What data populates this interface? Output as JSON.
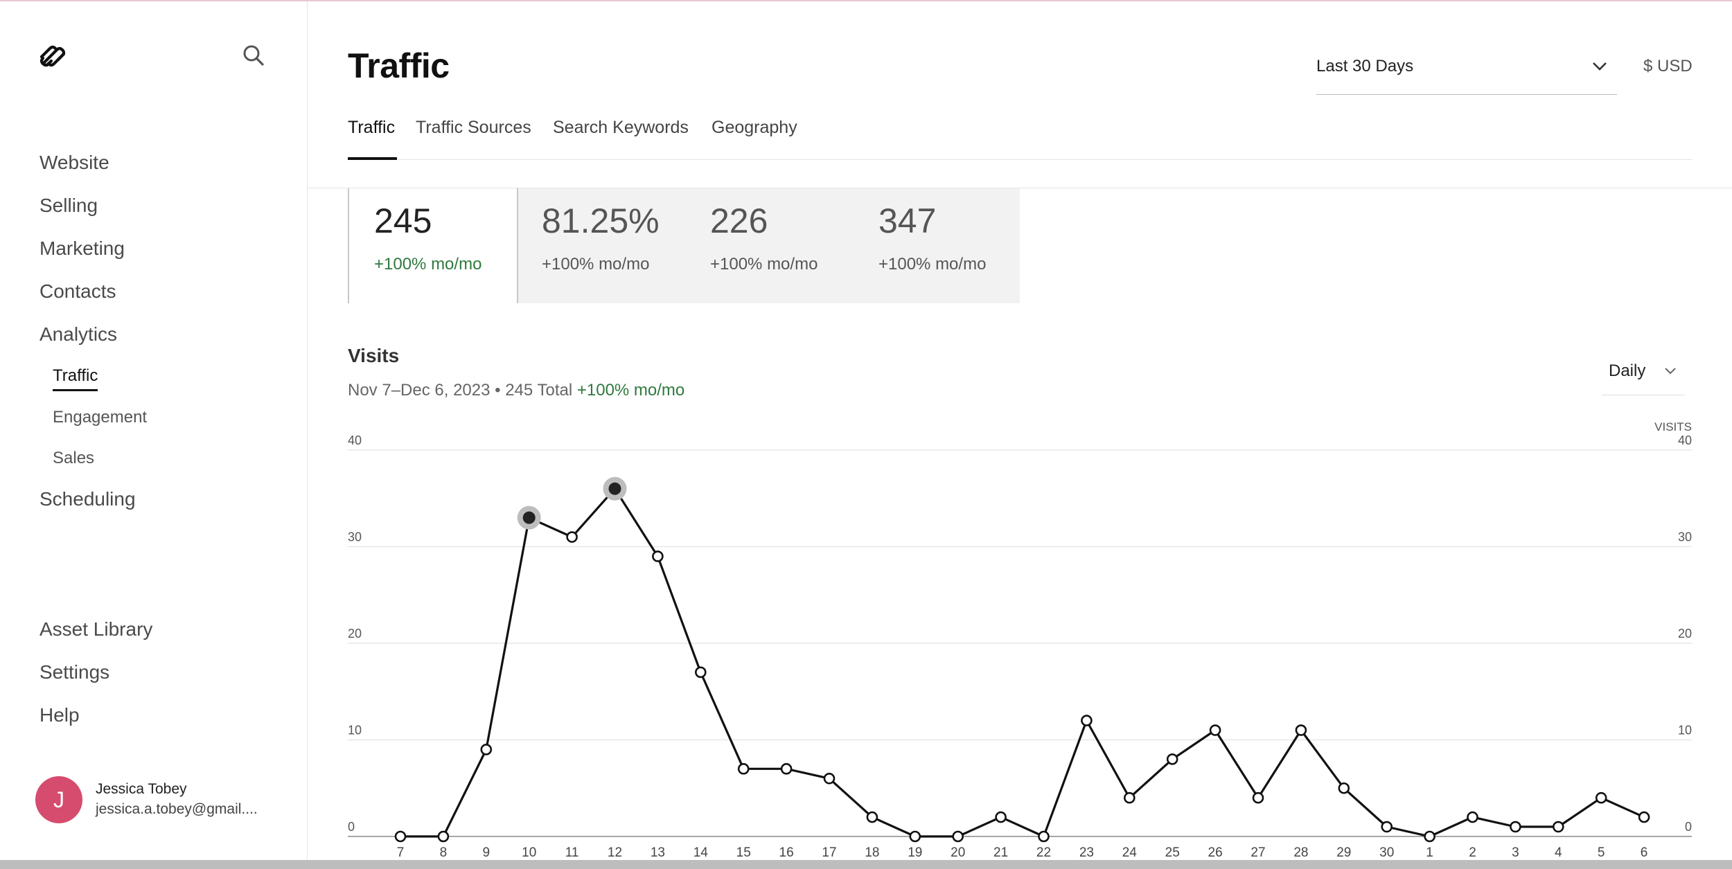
{
  "app": {
    "accent": "#111111",
    "positive_color": "#2f7a3e",
    "avatar_color": "#d64c6e"
  },
  "sidebar": {
    "logo_icon": "squarespace-logo-icon",
    "search_icon": "search-icon",
    "items": [
      {
        "label": "Website"
      },
      {
        "label": "Selling"
      },
      {
        "label": "Marketing"
      },
      {
        "label": "Contacts"
      },
      {
        "label": "Analytics"
      },
      {
        "label": "Scheduling"
      }
    ],
    "analytics_sub": [
      {
        "label": "Traffic",
        "active": true
      },
      {
        "label": "Engagement"
      },
      {
        "label": "Sales"
      }
    ],
    "bottom_items": [
      {
        "label": "Asset Library"
      },
      {
        "label": "Settings"
      },
      {
        "label": "Help"
      }
    ],
    "user": {
      "initial": "J",
      "name": "Jessica Tobey",
      "email": "jessica.a.tobey@gmail...."
    }
  },
  "header": {
    "title": "Traffic",
    "date_range": "Last 30 Days",
    "currency": "$ USD",
    "tabs": [
      {
        "label": "Traffic",
        "active": true
      },
      {
        "label": "Traffic Sources"
      },
      {
        "label": "Search Keywords"
      },
      {
        "label": "Geography"
      }
    ]
  },
  "metrics": [
    {
      "value": "245",
      "change": "+100% mo/mo",
      "active": true
    },
    {
      "value": "81.25%",
      "change": "+100% mo/mo"
    },
    {
      "value": "226",
      "change": "+100% mo/mo"
    },
    {
      "value": "347",
      "change": "+100% mo/mo"
    }
  ],
  "visits": {
    "title": "Visits",
    "subtitle_range": "Nov 7–Dec 6, 2023 • 245 Total",
    "subtitle_change": "+100% mo/mo",
    "interval": "Daily",
    "axis_title": "VISITS"
  },
  "chart_data": {
    "type": "line",
    "title": "Visits",
    "xlabel": "",
    "ylabel": "VISITS",
    "ylim": [
      0,
      40
    ],
    "yticks": [
      0,
      10,
      20,
      30,
      40
    ],
    "grid": true,
    "x": [
      "7",
      "8",
      "9",
      "10",
      "11",
      "12",
      "13",
      "14",
      "15",
      "16",
      "17",
      "18",
      "19",
      "20",
      "21",
      "22",
      "23",
      "24",
      "25",
      "26",
      "27",
      "28",
      "29",
      "30",
      "1",
      "2",
      "3",
      "4",
      "5",
      "6"
    ],
    "series": [
      {
        "values": [
          0,
          0,
          9,
          33,
          31,
          36,
          29,
          17,
          7,
          7,
          6,
          2,
          0,
          0,
          2,
          0,
          12,
          4,
          8,
          11,
          4,
          11,
          5,
          1,
          0,
          2,
          1,
          1,
          4,
          2
        ],
        "highlighted_points": [
          "10",
          "12"
        ]
      }
    ]
  }
}
